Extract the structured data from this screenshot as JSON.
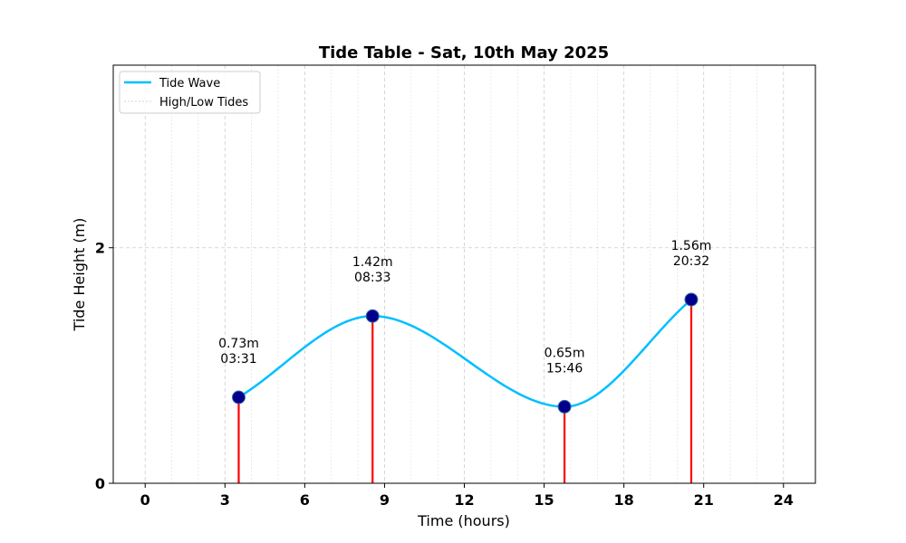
{
  "chart_data": {
    "type": "line",
    "title": "Tide Table - Sat, 10th May 2025",
    "xlabel": "Time (hours)",
    "ylabel": "Tide Height (m)",
    "xlim": [
      -1.2,
      25.2
    ],
    "ylim": [
      0,
      3.55
    ],
    "xticks": [
      0,
      3,
      6,
      9,
      12,
      15,
      18,
      21,
      24
    ],
    "yticks": [
      0,
      2
    ],
    "grid": true,
    "legend_position": "upper-left",
    "series": [
      {
        "name": "Tide Wave",
        "color": "#00bfff"
      },
      {
        "name": "High/Low Tides",
        "color": "#d3d3d3"
      }
    ],
    "tides": [
      {
        "t": 3.517,
        "height": 0.73,
        "height_label": "0.73m",
        "time_label": "03:31"
      },
      {
        "t": 8.55,
        "height": 1.42,
        "height_label": "1.42m",
        "time_label": "08:33"
      },
      {
        "t": 15.767,
        "height": 0.65,
        "height_label": "0.65m",
        "time_label": "15:46"
      },
      {
        "t": 20.533,
        "height": 1.56,
        "height_label": "1.56m",
        "time_label": "20:32"
      }
    ],
    "colors": {
      "marker": "#00008b",
      "stem": "#ff0000",
      "wave": "#00bfff"
    }
  }
}
